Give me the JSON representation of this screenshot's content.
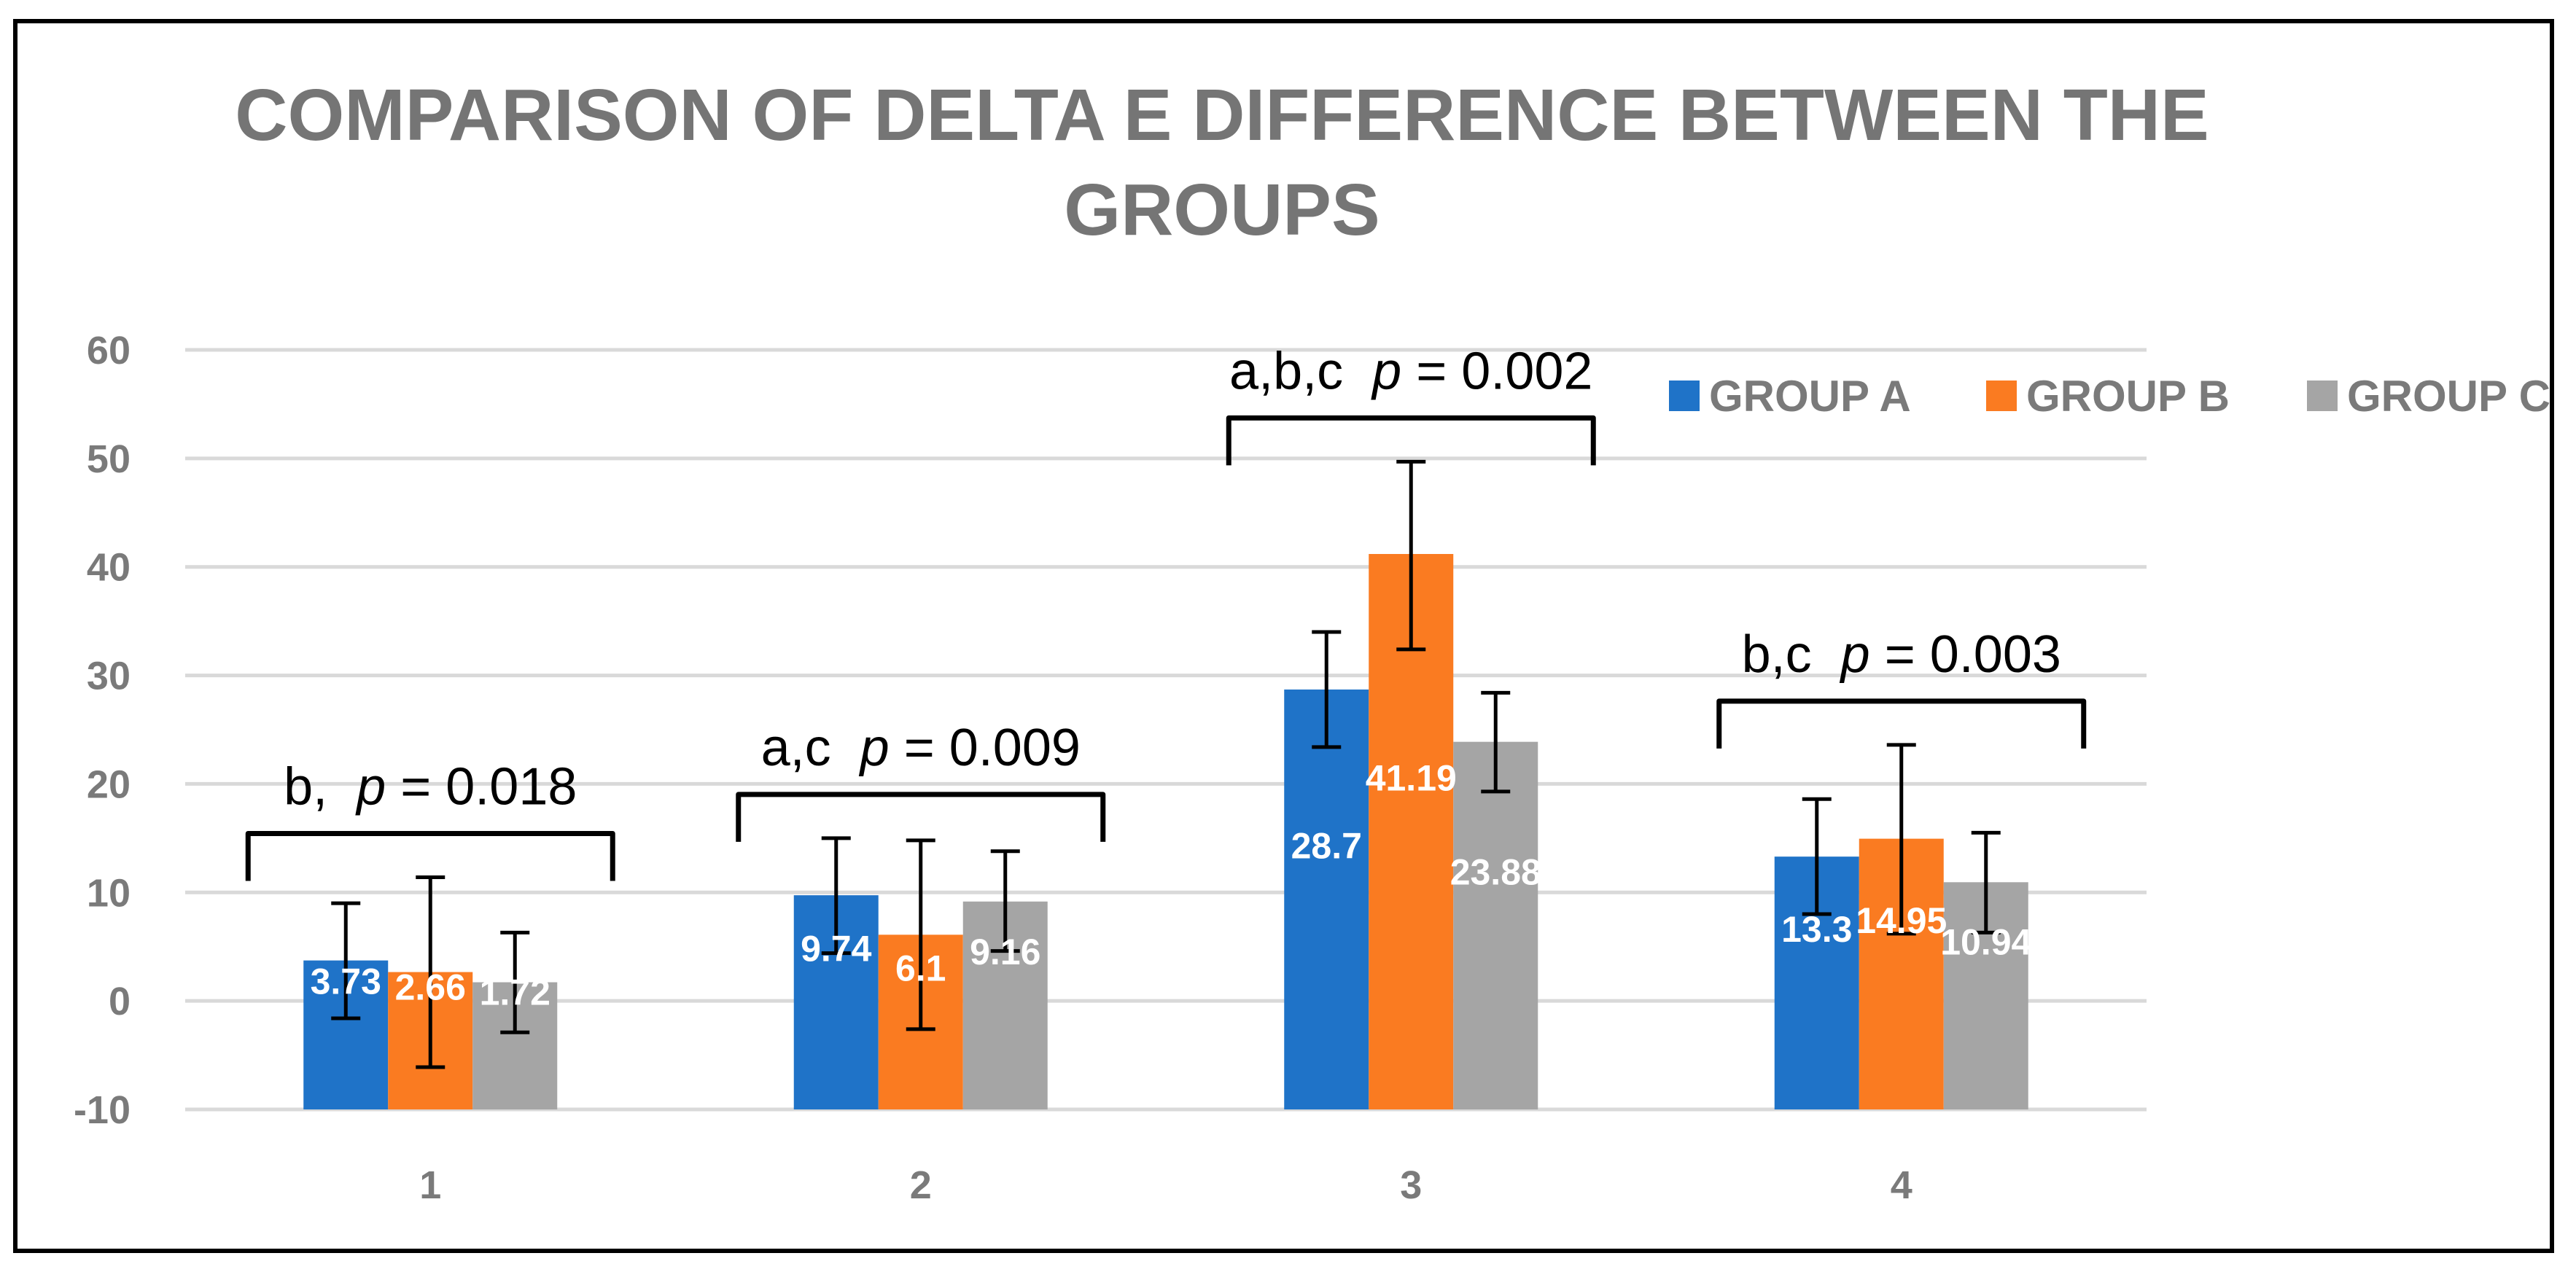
{
  "chart_data": {
    "type": "bar",
    "title_lines": [
      "COMPARISON OF DELTA E DIFFERENCE BETWEEN THE",
      "GROUPS"
    ],
    "categories": [
      "1",
      "2",
      "3",
      "4"
    ],
    "ylim": [
      -10,
      60
    ],
    "yticks": [
      -10,
      0,
      10,
      20,
      30,
      40,
      50,
      60
    ],
    "ytick_labels": [
      "-10",
      "0",
      "10",
      "20",
      "30",
      "40",
      "50",
      "60"
    ],
    "grid": true,
    "legend_position": "top-right",
    "series": [
      {
        "name": "GROUP A",
        "color": "#1f73c8",
        "values": [
          3.73,
          9.74,
          28.7,
          13.3
        ],
        "labels": [
          "3.73",
          "9.74",
          "28.7",
          "13.3"
        ],
        "error_low": [
          -1.6,
          4.4,
          23.4,
          8.0
        ],
        "error_high": [
          9.0,
          15.0,
          34.0,
          18.6
        ]
      },
      {
        "name": "GROUP B",
        "color": "#fa7b21",
        "values": [
          2.66,
          6.1,
          41.19,
          14.95
        ],
        "labels": [
          "2.66",
          "6.1",
          "41.19",
          "14.95"
        ],
        "error_low": [
          -6.1,
          -2.6,
          32.4,
          6.2
        ],
        "error_high": [
          11.4,
          14.8,
          49.7,
          23.6
        ]
      },
      {
        "name": "GROUP C",
        "color": "#a5a5a5",
        "values": [
          1.72,
          9.16,
          23.88,
          10.94
        ],
        "labels": [
          "1.72",
          "9.16",
          "23.88",
          "10.94"
        ],
        "error_low": [
          -2.9,
          4.6,
          19.3,
          6.3
        ],
        "error_high": [
          6.3,
          13.8,
          28.4,
          15.5
        ]
      }
    ],
    "annotations": [
      {
        "category": 0,
        "prefix": "b,",
        "p_symbol": "p",
        "p_value": " = 0.018"
      },
      {
        "category": 1,
        "prefix": "a,c",
        "p_symbol": "p",
        "p_value": " = 0.009"
      },
      {
        "category": 2,
        "prefix": "a,b,c",
        "p_symbol": "p",
        "p_value": " = 0.002"
      },
      {
        "category": 3,
        "prefix": "b,c",
        "p_symbol": "p",
        "p_value": " = 0.003"
      }
    ]
  }
}
